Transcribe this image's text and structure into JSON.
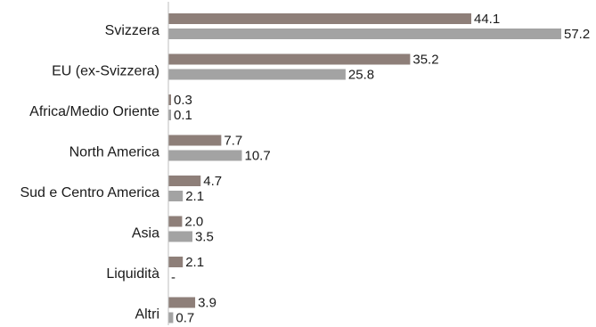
{
  "chart_data": {
    "type": "bar",
    "orientation": "horizontal",
    "categories": [
      "Svizzera",
      "EU (ex-Svizzera)",
      "Africa/Medio Oriente",
      "North America",
      "Sud e Centro America",
      "Asia",
      "Liquidità",
      "Altri"
    ],
    "series": [
      {
        "color": "#8e7f79",
        "values": [
          44.1,
          35.2,
          0.3,
          7.7,
          4.7,
          2.0,
          2.1,
          3.9
        ],
        "labels": [
          "44.1",
          "35.2",
          "0.3",
          "7.7",
          "4.7",
          "2.0",
          "2.1",
          "3.9"
        ]
      },
      {
        "color": "#a3a3a3",
        "values": [
          57.2,
          25.8,
          0.1,
          10.7,
          2.1,
          3.5,
          null,
          0.7
        ],
        "labels": [
          "57.2",
          "25.8",
          "0.1",
          "10.7",
          "2.1",
          "3.5",
          "-",
          "0.7"
        ]
      }
    ],
    "xlim": [
      0,
      57.2
    ],
    "axis_color": "#bfbfbf",
    "grid": false,
    "legend": "none"
  }
}
